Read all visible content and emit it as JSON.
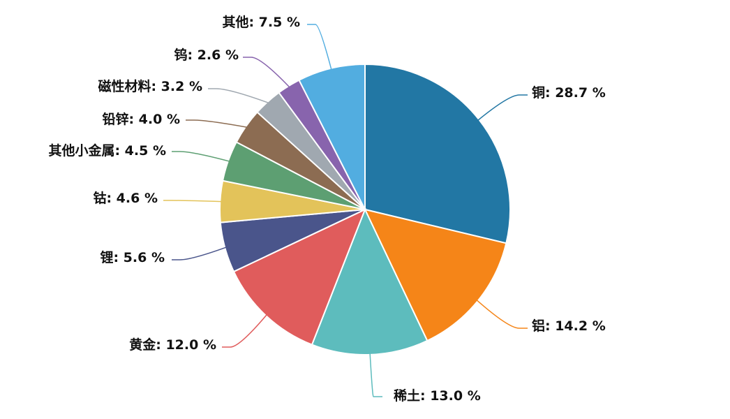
{
  "chart_data": {
    "type": "pie",
    "title": "",
    "unit": "%",
    "slices": [
      {
        "label": "铜",
        "value": 28.7,
        "color": "#2277a4"
      },
      {
        "label": "铝",
        "value": 14.2,
        "color": "#f58518"
      },
      {
        "label": "稀土",
        "value": 13.0,
        "color": "#5dbcbd"
      },
      {
        "label": "黄金",
        "value": 12.0,
        "color": "#e05c5c"
      },
      {
        "label": "锂",
        "value": 5.6,
        "color": "#4a558b"
      },
      {
        "label": "钴",
        "value": 4.6,
        "color": "#e3c35a"
      },
      {
        "label": "其他小金属",
        "value": 4.5,
        "color": "#5d9f72"
      },
      {
        "label": "铅锌",
        "value": 4.0,
        "color": "#8c6c52"
      },
      {
        "label": "磁性材料",
        "value": 3.2,
        "color": "#a0a8b0"
      },
      {
        "label": "钨",
        "value": 2.6,
        "color": "#8864ad"
      },
      {
        "label": "其他",
        "value": 7.5,
        "color": "#52ade0"
      }
    ]
  }
}
